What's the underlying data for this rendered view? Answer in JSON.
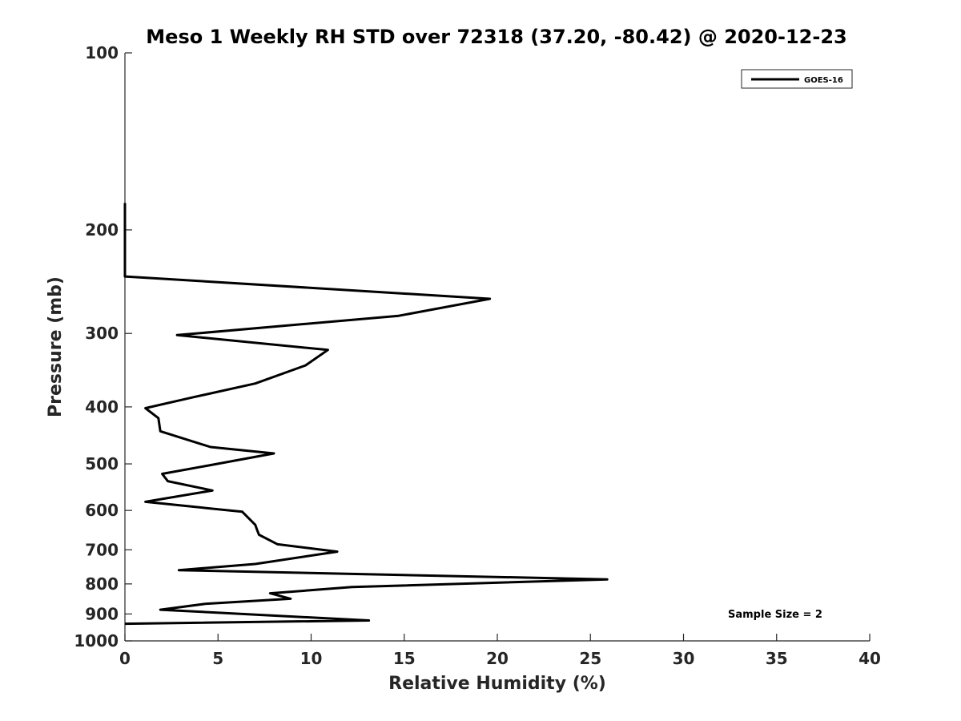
{
  "chart_data": {
    "type": "line",
    "title": "Meso 1 Weekly RH STD over 72318 (37.20, -80.42) @ 2020-12-23",
    "xlabel": "Relative Humidity (%)",
    "ylabel": "Pressure (mb)",
    "xlim": [
      0,
      40
    ],
    "ylim": [
      100,
      1000
    ],
    "y_scale": "log",
    "y_reversed": true,
    "x_ticks": [
      0,
      5,
      10,
      15,
      20,
      25,
      30,
      35,
      40
    ],
    "y_ticks": [
      100,
      200,
      300,
      400,
      500,
      600,
      700,
      800,
      900,
      1000
    ],
    "grid": false,
    "legend": "top-right",
    "annotation": "Sample Size = 2",
    "series": [
      {
        "name": "GOES-16",
        "color": "#000000",
        "points": [
          [
            0,
            180
          ],
          [
            0,
            190
          ],
          [
            0,
            200
          ],
          [
            0,
            210
          ],
          [
            0,
            220
          ],
          [
            0,
            230
          ],
          [
            0,
            240
          ],
          [
            19.6,
            262
          ],
          [
            14.7,
            280
          ],
          [
            2.8,
            302
          ],
          [
            10.9,
            320
          ],
          [
            9.7,
            340
          ],
          [
            7.0,
            365
          ],
          [
            3.7,
            385
          ],
          [
            1.1,
            402
          ],
          [
            1.8,
            418
          ],
          [
            1.9,
            440
          ],
          [
            4.6,
            468
          ],
          [
            8.0,
            480
          ],
          [
            4.5,
            503
          ],
          [
            2.0,
            520
          ],
          [
            2.3,
            535
          ],
          [
            4.7,
            555
          ],
          [
            1.1,
            580
          ],
          [
            6.3,
            603
          ],
          [
            7.0,
            635
          ],
          [
            7.1,
            648
          ],
          [
            7.2,
            660
          ],
          [
            8.2,
            685
          ],
          [
            11.4,
            705
          ],
          [
            7.0,
            740
          ],
          [
            2.9,
            758
          ],
          [
            25.9,
            786
          ],
          [
            12.2,
            810
          ],
          [
            7.8,
            830
          ],
          [
            8.9,
            848
          ],
          [
            4.3,
            865
          ],
          [
            1.9,
            885
          ],
          [
            13.1,
            923
          ],
          [
            0,
            935
          ]
        ]
      }
    ]
  }
}
